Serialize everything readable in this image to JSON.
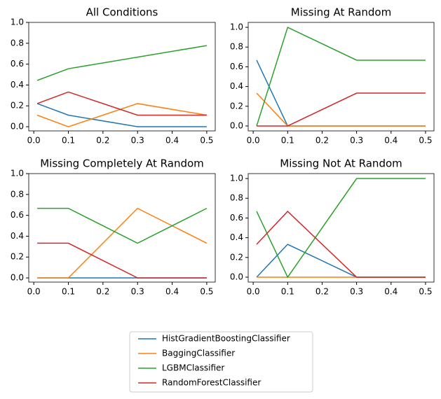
{
  "chart_data": [
    {
      "type": "line",
      "title": "All Conditions",
      "x": [
        0.01,
        0.1,
        0.3,
        0.5
      ],
      "series": [
        {
          "name": "HistGradientBoostingClassifier",
          "color": "#1f77b4",
          "values": [
            0.222,
            0.111,
            0,
            0
          ]
        },
        {
          "name": "BaggingClassifier",
          "color": "#ff7f0e",
          "values": [
            0.111,
            0,
            0.222,
            0.111
          ]
        },
        {
          "name": "LGBMClassifier",
          "color": "#2ca02c",
          "values": [
            0.444,
            0.556,
            0.667,
            0.778
          ]
        },
        {
          "name": "RandomForestClassifier",
          "color": "#d62728",
          "values": [
            0.222,
            0.333,
            0.111,
            0.111
          ]
        }
      ],
      "xlim": [
        -0.0145,
        0.5245
      ],
      "xticks": [
        {
          "value": 0,
          "label": "0.0"
        },
        0.1,
        0.2,
        0.3,
        0.4,
        0.5
      ],
      "ylim": [
        -0.04,
        1.0
      ],
      "yticks": [
        {
          "value": 0,
          "label": "0.0"
        },
        0.2,
        0.4,
        0.6,
        0.8,
        {
          "value": 1,
          "label": "1.0"
        }
      ]
    },
    {
      "type": "line",
      "title": "Missing At Random",
      "x": [
        0.01,
        0.1,
        0.3,
        0.5
      ],
      "series": [
        {
          "name": "HistGradientBoostingClassifier",
          "color": "#1f77b4",
          "values": [
            0.667,
            0,
            0,
            0
          ]
        },
        {
          "name": "BaggingClassifier",
          "color": "#ff7f0e",
          "values": [
            0.333,
            0,
            0,
            0
          ]
        },
        {
          "name": "LGBMClassifier",
          "color": "#2ca02c",
          "values": [
            0,
            1,
            0.667,
            0.667
          ]
        },
        {
          "name": "RandomForestClassifier",
          "color": "#d62728",
          "values": [
            0,
            0,
            0.333,
            0.333
          ]
        }
      ],
      "xlim": [
        -0.0145,
        0.5245
      ],
      "xticks": [
        {
          "value": 0,
          "label": "0.0"
        },
        0.1,
        0.2,
        0.3,
        0.4,
        0.5
      ],
      "ylim": [
        -0.05,
        1.05
      ],
      "yticks": [
        {
          "value": 0,
          "label": "0.0"
        },
        0.2,
        0.4,
        0.6,
        0.8,
        {
          "value": 1,
          "label": "1.0"
        }
      ]
    },
    {
      "type": "line",
      "title": "Missing Completely At Random",
      "x": [
        0.01,
        0.1,
        0.3,
        0.5
      ],
      "series": [
        {
          "name": "HistGradientBoostingClassifier",
          "color": "#1f77b4",
          "values": [
            0,
            0,
            0,
            0
          ]
        },
        {
          "name": "BaggingClassifier",
          "color": "#ff7f0e",
          "values": [
            0,
            0,
            0.667,
            0.333
          ]
        },
        {
          "name": "LGBMClassifier",
          "color": "#2ca02c",
          "values": [
            0.667,
            0.667,
            0.333,
            0.667
          ]
        },
        {
          "name": "RandomForestClassifier",
          "color": "#d62728",
          "values": [
            0.333,
            0.333,
            0,
            0
          ]
        }
      ],
      "xlim": [
        -0.0145,
        0.5245
      ],
      "xticks": [
        {
          "value": 0,
          "label": "0.0"
        },
        0.1,
        0.2,
        0.3,
        0.4,
        0.5
      ],
      "ylim": [
        -0.04,
        1.0
      ],
      "yticks": [
        {
          "value": 0,
          "label": "0.0"
        },
        0.2,
        0.4,
        0.6,
        0.8,
        {
          "value": 1,
          "label": "1.0"
        }
      ]
    },
    {
      "type": "line",
      "title": "Missing Not At Random",
      "x": [
        0.01,
        0.1,
        0.3,
        0.5
      ],
      "series": [
        {
          "name": "HistGradientBoostingClassifier",
          "color": "#1f77b4",
          "values": [
            0,
            0.333,
            0,
            0
          ]
        },
        {
          "name": "BaggingClassifier",
          "color": "#ff7f0e",
          "values": [
            0,
            0,
            0,
            0
          ]
        },
        {
          "name": "LGBMClassifier",
          "color": "#2ca02c",
          "values": [
            0.667,
            0,
            1,
            1
          ]
        },
        {
          "name": "RandomForestClassifier",
          "color": "#d62728",
          "values": [
            0.333,
            0.667,
            0,
            0
          ]
        }
      ],
      "xlim": [
        -0.0145,
        0.5245
      ],
      "xticks": [
        {
          "value": 0,
          "label": "0.0"
        },
        0.1,
        0.2,
        0.3,
        0.4,
        0.5
      ],
      "ylim": [
        -0.05,
        1.05
      ],
      "yticks": [
        {
          "value": 0,
          "label": "0.0"
        },
        0.2,
        0.4,
        0.6,
        0.8,
        {
          "value": 1,
          "label": "1.0"
        }
      ]
    }
  ]
}
